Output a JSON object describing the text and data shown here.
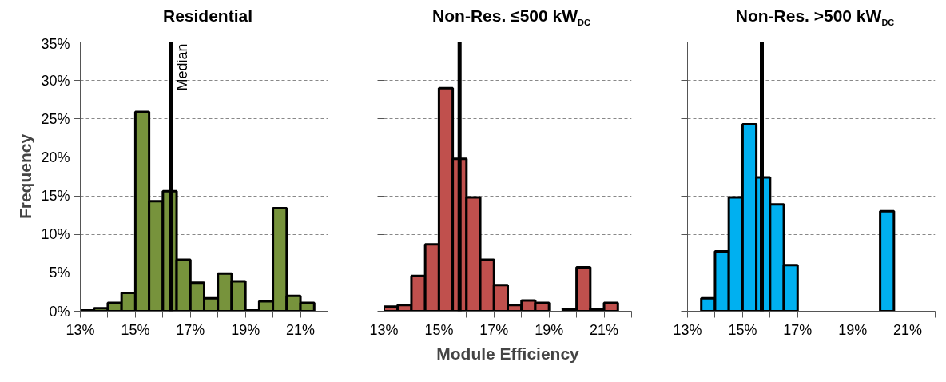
{
  "chart_data": [
    {
      "type": "histogram",
      "title": "Residential",
      "ylabel": "Frequency",
      "color": "#77933c",
      "bins": [
        13.0,
        13.5,
        14.0,
        14.5,
        15.0,
        15.5,
        16.0,
        16.5,
        17.0,
        17.5,
        18.0,
        18.5,
        19.0,
        19.5,
        20.0,
        20.5,
        21.0,
        21.5
      ],
      "values": [
        0.1,
        0.4,
        1.1,
        2.4,
        25.9,
        14.3,
        15.6,
        6.7,
        3.7,
        1.7,
        4.9,
        3.9,
        0.1,
        1.3,
        13.4,
        2.0,
        1.1
      ],
      "xlim": [
        13,
        22
      ],
      "ylim": [
        0,
        35
      ],
      "xticks": [
        {
          "value": 13,
          "label": "13%"
        },
        {
          "value": 14,
          "label": null
        },
        {
          "value": 15,
          "label": "15%"
        },
        {
          "value": 16,
          "label": null
        },
        {
          "value": 17,
          "label": "17%"
        },
        {
          "value": 18,
          "label": null
        },
        {
          "value": 19,
          "label": "19%"
        },
        {
          "value": 20,
          "label": null
        },
        {
          "value": 21,
          "label": "21%"
        },
        {
          "value": 22,
          "label": null
        }
      ],
      "yticks": [
        {
          "value": 0,
          "label": "0%"
        },
        {
          "value": 5,
          "label": "5%"
        },
        {
          "value": 10,
          "label": "10%"
        },
        {
          "value": 15,
          "label": "15%"
        },
        {
          "value": 20,
          "label": "20%"
        },
        {
          "value": 25,
          "label": "25%"
        },
        {
          "value": 30,
          "label": "30%"
        },
        {
          "value": 35,
          "label": "35%"
        }
      ],
      "ref_lines": [
        {
          "axis": "x",
          "value": 16.3,
          "label": "Median",
          "color": "#000000"
        }
      ],
      "grid": "y"
    },
    {
      "type": "histogram",
      "title": "Non-Res. ≤500 kW$_{DC}$",
      "xlabel": "Module Efficiency",
      "color": "#c0504d",
      "bins": [
        13.0,
        13.5,
        14.0,
        14.5,
        15.0,
        15.5,
        16.0,
        16.5,
        17.0,
        17.5,
        18.0,
        18.5,
        19.0,
        19.5,
        20.0,
        20.5,
        21.0,
        21.5
      ],
      "values": [
        0.6,
        0.8,
        4.6,
        8.7,
        29.0,
        19.8,
        14.8,
        6.7,
        3.4,
        0.8,
        1.4,
        1.1,
        null,
        0.3,
        5.7,
        0.3,
        1.1
      ],
      "xlim": [
        13,
        22
      ],
      "ylim": [
        0,
        35
      ],
      "xticks": [
        {
          "value": 13,
          "label": "13%"
        },
        {
          "value": 14,
          "label": null
        },
        {
          "value": 15,
          "label": "15%"
        },
        {
          "value": 16,
          "label": null
        },
        {
          "value": 17,
          "label": "17%"
        },
        {
          "value": 18,
          "label": null
        },
        {
          "value": 19,
          "label": "19%"
        },
        {
          "value": 20,
          "label": null
        },
        {
          "value": 21,
          "label": "21%"
        },
        {
          "value": 22,
          "label": null
        }
      ],
      "yticks": [
        0,
        5,
        10,
        15,
        20,
        25,
        30,
        35
      ],
      "ref_lines": [
        {
          "axis": "x",
          "value": 15.75,
          "color": "#000000"
        }
      ],
      "grid": "y",
      "tick_labels": "x"
    },
    {
      "type": "histogram",
      "title": "Non-Res. >500 kW$_{DC}$",
      "color": "#00b0f0",
      "bins": [
        13.0,
        13.5,
        14.0,
        14.5,
        15.0,
        15.5,
        16.0,
        16.5,
        17.0,
        17.5,
        18.0,
        18.5,
        19.0,
        19.5,
        20.0,
        20.5
      ],
      "values": [
        null,
        1.7,
        7.8,
        14.8,
        24.3,
        17.4,
        13.9,
        6.0,
        null,
        null,
        null,
        null,
        null,
        null,
        13.0
      ],
      "xlim": [
        13,
        22
      ],
      "ylim": [
        0,
        35
      ],
      "xticks": [
        {
          "value": 13,
          "label": "13%"
        },
        {
          "value": 14,
          "label": null
        },
        {
          "value": 15,
          "label": "15%"
        },
        {
          "value": 16,
          "label": null
        },
        {
          "value": 17,
          "label": "17%"
        },
        {
          "value": 18,
          "label": null
        },
        {
          "value": 19,
          "label": "19%"
        },
        {
          "value": 20,
          "label": null
        },
        {
          "value": 21,
          "label": "21%"
        },
        {
          "value": 22,
          "label": null
        }
      ],
      "yticks": [
        0,
        5,
        10,
        15,
        20,
        25,
        30,
        35
      ],
      "ref_lines": [
        {
          "axis": "x",
          "value": 15.7,
          "color": "#000000"
        }
      ],
      "grid": "y",
      "tick_labels": "x"
    }
  ]
}
